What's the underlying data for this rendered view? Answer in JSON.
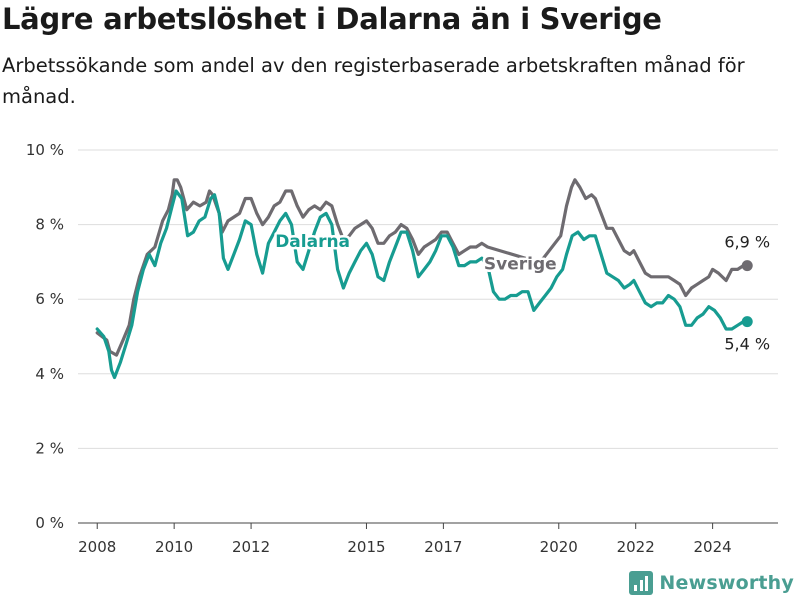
{
  "header": {
    "title": "Lägre arbetslöshet i Dalarna än i Sverige",
    "subtitle": "Arbetssökande som andel av den registerbaserade arbetskraften månad för månad."
  },
  "brand": {
    "name": "Newsworthy",
    "color": "#4a9e92"
  },
  "chart_data": {
    "type": "line",
    "title": "Lägre arbetslöshet i Dalarna än i Sverige",
    "subtitle": "Arbetssökande som andel av den registerbaserade arbetskraften månad för månad.",
    "xlabel": "",
    "ylabel": "",
    "x_ticks": [
      "2008",
      "2010",
      "2012",
      "2015",
      "2017",
      "2020",
      "2022",
      "2024"
    ],
    "x_tick_values": [
      2008,
      2010,
      2012,
      2015,
      2017,
      2020,
      2022,
      2024
    ],
    "y_ticks": [
      "0 %",
      "2 %",
      "4 %",
      "6 %",
      "8 %",
      "10 %"
    ],
    "y_tick_values": [
      0,
      2,
      4,
      6,
      8,
      10
    ],
    "xlim": [
      2007.5,
      2025.7
    ],
    "ylim": [
      0,
      10
    ],
    "grid": "horizontal",
    "legend": "direct labels",
    "series": [
      {
        "name": "Sverige",
        "color": "#6e6b70",
        "end_label": "6,9 %",
        "points": [
          [
            2008.0,
            5.1
          ],
          [
            2008.25,
            4.9
          ],
          [
            2008.33,
            4.6
          ],
          [
            2008.5,
            4.5
          ],
          [
            2008.67,
            4.9
          ],
          [
            2008.83,
            5.3
          ],
          [
            2008.95,
            6.0
          ],
          [
            2009.1,
            6.6
          ],
          [
            2009.3,
            7.2
          ],
          [
            2009.5,
            7.4
          ],
          [
            2009.7,
            8.1
          ],
          [
            2009.85,
            8.4
          ],
          [
            2009.95,
            8.8
          ],
          [
            2010.0,
            9.2
          ],
          [
            2010.08,
            9.2
          ],
          [
            2010.17,
            9.0
          ],
          [
            2010.33,
            8.4
          ],
          [
            2010.5,
            8.6
          ],
          [
            2010.67,
            8.5
          ],
          [
            2010.83,
            8.6
          ],
          [
            2010.92,
            8.9
          ],
          [
            2011.0,
            8.8
          ],
          [
            2011.17,
            8.3
          ],
          [
            2011.25,
            7.8
          ],
          [
            2011.4,
            8.1
          ],
          [
            2011.55,
            8.2
          ],
          [
            2011.7,
            8.3
          ],
          [
            2011.85,
            8.7
          ],
          [
            2012.0,
            8.7
          ],
          [
            2012.15,
            8.3
          ],
          [
            2012.3,
            8.0
          ],
          [
            2012.45,
            8.2
          ],
          [
            2012.6,
            8.5
          ],
          [
            2012.75,
            8.6
          ],
          [
            2012.9,
            8.9
          ],
          [
            2013.05,
            8.9
          ],
          [
            2013.2,
            8.5
          ],
          [
            2013.35,
            8.2
          ],
          [
            2013.5,
            8.4
          ],
          [
            2013.65,
            8.5
          ],
          [
            2013.8,
            8.4
          ],
          [
            2013.95,
            8.6
          ],
          [
            2014.1,
            8.5
          ],
          [
            2014.25,
            8.0
          ],
          [
            2014.4,
            7.6
          ],
          [
            2014.55,
            7.7
          ],
          [
            2014.7,
            7.9
          ],
          [
            2014.85,
            8.0
          ],
          [
            2015.0,
            8.1
          ],
          [
            2015.15,
            7.9
          ],
          [
            2015.3,
            7.5
          ],
          [
            2015.45,
            7.5
          ],
          [
            2015.6,
            7.7
          ],
          [
            2015.75,
            7.8
          ],
          [
            2015.9,
            8.0
          ],
          [
            2016.05,
            7.9
          ],
          [
            2016.2,
            7.6
          ],
          [
            2016.35,
            7.2
          ],
          [
            2016.5,
            7.4
          ],
          [
            2016.65,
            7.5
          ],
          [
            2016.8,
            7.6
          ],
          [
            2016.95,
            7.8
          ],
          [
            2017.1,
            7.8
          ],
          [
            2017.25,
            7.5
          ],
          [
            2017.4,
            7.2
          ],
          [
            2017.55,
            7.3
          ],
          [
            2017.7,
            7.4
          ],
          [
            2017.85,
            7.4
          ],
          [
            2018.0,
            7.5
          ],
          [
            2018.15,
            7.4
          ],
          [
            2019.45,
            7.0
          ],
          [
            2019.6,
            7.1
          ],
          [
            2019.75,
            7.3
          ],
          [
            2019.9,
            7.5
          ],
          [
            2020.05,
            7.7
          ],
          [
            2020.2,
            8.5
          ],
          [
            2020.33,
            9.0
          ],
          [
            2020.42,
            9.2
          ],
          [
            2020.55,
            9.0
          ],
          [
            2020.7,
            8.7
          ],
          [
            2020.85,
            8.8
          ],
          [
            2020.95,
            8.7
          ],
          [
            2021.1,
            8.3
          ],
          [
            2021.25,
            7.9
          ],
          [
            2021.4,
            7.9
          ],
          [
            2021.55,
            7.6
          ],
          [
            2021.7,
            7.3
          ],
          [
            2021.85,
            7.2
          ],
          [
            2021.95,
            7.3
          ],
          [
            2022.1,
            7.0
          ],
          [
            2022.25,
            6.7
          ],
          [
            2022.4,
            6.6
          ],
          [
            2022.55,
            6.6
          ],
          [
            2022.7,
            6.6
          ],
          [
            2022.85,
            6.6
          ],
          [
            2023.0,
            6.5
          ],
          [
            2023.15,
            6.4
          ],
          [
            2023.3,
            6.1
          ],
          [
            2023.45,
            6.3
          ],
          [
            2023.6,
            6.4
          ],
          [
            2023.75,
            6.5
          ],
          [
            2023.9,
            6.6
          ],
          [
            2024.0,
            6.8
          ],
          [
            2024.15,
            6.7
          ],
          [
            2024.35,
            6.5
          ],
          [
            2024.5,
            6.8
          ],
          [
            2024.65,
            6.8
          ],
          [
            2024.8,
            6.9
          ],
          [
            2024.9,
            6.9
          ]
        ]
      },
      {
        "name": "Dalarna",
        "color": "#179c91",
        "end_label": "5,4 %",
        "points": [
          [
            2008.0,
            5.2
          ],
          [
            2008.17,
            5.0
          ],
          [
            2008.3,
            4.6
          ],
          [
            2008.37,
            4.1
          ],
          [
            2008.45,
            3.9
          ],
          [
            2008.6,
            4.3
          ],
          [
            2008.75,
            4.8
          ],
          [
            2008.9,
            5.3
          ],
          [
            2009.05,
            6.2
          ],
          [
            2009.2,
            6.8
          ],
          [
            2009.35,
            7.2
          ],
          [
            2009.5,
            6.9
          ],
          [
            2009.65,
            7.5
          ],
          [
            2009.8,
            7.9
          ],
          [
            2009.95,
            8.5
          ],
          [
            2010.05,
            8.9
          ],
          [
            2010.2,
            8.7
          ],
          [
            2010.35,
            7.7
          ],
          [
            2010.5,
            7.8
          ],
          [
            2010.65,
            8.1
          ],
          [
            2010.8,
            8.2
          ],
          [
            2010.95,
            8.7
          ],
          [
            2011.05,
            8.8
          ],
          [
            2011.17,
            8.3
          ],
          [
            2011.28,
            7.1
          ],
          [
            2011.4,
            6.8
          ],
          [
            2011.55,
            7.2
          ],
          [
            2011.7,
            7.6
          ],
          [
            2011.85,
            8.1
          ],
          [
            2012.0,
            8.0
          ],
          [
            2012.15,
            7.2
          ],
          [
            2012.3,
            6.7
          ],
          [
            2012.45,
            7.5
          ],
          [
            2012.6,
            7.8
          ],
          [
            2012.75,
            8.1
          ],
          [
            2012.9,
            8.3
          ],
          [
            2013.05,
            8.0
          ],
          [
            2013.2,
            7.0
          ],
          [
            2013.35,
            6.8
          ],
          [
            2013.5,
            7.3
          ],
          [
            2013.65,
            7.8
          ],
          [
            2013.8,
            8.2
          ],
          [
            2013.95,
            8.3
          ],
          [
            2014.1,
            8.0
          ],
          [
            2014.25,
            6.8
          ],
          [
            2014.4,
            6.3
          ],
          [
            2014.55,
            6.7
          ],
          [
            2014.7,
            7.0
          ],
          [
            2014.85,
            7.3
          ],
          [
            2015.0,
            7.5
          ],
          [
            2015.15,
            7.2
          ],
          [
            2015.3,
            6.6
          ],
          [
            2015.45,
            6.5
          ],
          [
            2015.6,
            7.0
          ],
          [
            2015.75,
            7.4
          ],
          [
            2015.9,
            7.8
          ],
          [
            2016.05,
            7.8
          ],
          [
            2016.2,
            7.3
          ],
          [
            2016.35,
            6.6
          ],
          [
            2016.5,
            6.8
          ],
          [
            2016.65,
            7.0
          ],
          [
            2016.8,
            7.3
          ],
          [
            2016.95,
            7.7
          ],
          [
            2017.1,
            7.7
          ],
          [
            2017.25,
            7.4
          ],
          [
            2017.4,
            6.9
          ],
          [
            2017.55,
            6.9
          ],
          [
            2017.7,
            7.0
          ],
          [
            2017.85,
            7.0
          ],
          [
            2018.0,
            7.1
          ],
          [
            2018.15,
            6.9
          ],
          [
            2018.3,
            6.2
          ],
          [
            2018.45,
            6.0
          ],
          [
            2018.6,
            6.0
          ],
          [
            2018.75,
            6.1
          ],
          [
            2018.9,
            6.1
          ],
          [
            2019.05,
            6.2
          ],
          [
            2019.2,
            6.2
          ],
          [
            2019.35,
            5.7
          ],
          [
            2019.5,
            5.9
          ],
          [
            2019.65,
            6.1
          ],
          [
            2019.8,
            6.3
          ],
          [
            2019.95,
            6.6
          ],
          [
            2020.1,
            6.8
          ],
          [
            2020.2,
            7.2
          ],
          [
            2020.35,
            7.7
          ],
          [
            2020.5,
            7.8
          ],
          [
            2020.65,
            7.6
          ],
          [
            2020.8,
            7.7
          ],
          [
            2020.95,
            7.7
          ],
          [
            2021.1,
            7.2
          ],
          [
            2021.25,
            6.7
          ],
          [
            2021.4,
            6.6
          ],
          [
            2021.55,
            6.5
          ],
          [
            2021.7,
            6.3
          ],
          [
            2021.85,
            6.4
          ],
          [
            2021.95,
            6.5
          ],
          [
            2022.1,
            6.2
          ],
          [
            2022.25,
            5.9
          ],
          [
            2022.4,
            5.8
          ],
          [
            2022.55,
            5.9
          ],
          [
            2022.7,
            5.9
          ],
          [
            2022.85,
            6.1
          ],
          [
            2023.0,
            6.0
          ],
          [
            2023.15,
            5.8
          ],
          [
            2023.3,
            5.3
          ],
          [
            2023.45,
            5.3
          ],
          [
            2023.6,
            5.5
          ],
          [
            2023.75,
            5.6
          ],
          [
            2023.9,
            5.8
          ],
          [
            2024.05,
            5.7
          ],
          [
            2024.2,
            5.5
          ],
          [
            2024.35,
            5.2
          ],
          [
            2024.5,
            5.2
          ],
          [
            2024.65,
            5.3
          ],
          [
            2024.8,
            5.4
          ],
          [
            2024.9,
            5.4
          ]
        ]
      }
    ],
    "annotations": [
      {
        "text": "Dalarna",
        "series": "Dalarna",
        "x": 2013.6,
        "y": 7.4
      },
      {
        "text": "Sverige",
        "series": "Sverige",
        "x": 2019.0,
        "y": 6.8
      }
    ]
  }
}
